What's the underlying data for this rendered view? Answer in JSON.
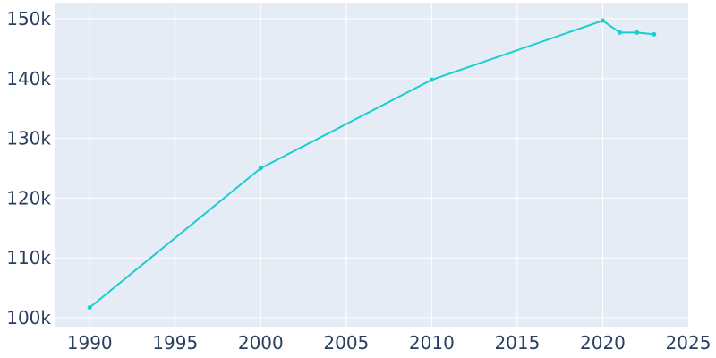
{
  "chart_data": {
    "type": "line",
    "title": "",
    "xlabel": "",
    "ylabel": "",
    "xlim": [
      1988,
      2025
    ],
    "ylim": [
      98500,
      152700
    ],
    "x_ticks": [
      1990,
      1995,
      2000,
      2005,
      2010,
      2015,
      2020,
      2025
    ],
    "x_tick_labels": [
      "1990",
      "1995",
      "2000",
      "2005",
      "2010",
      "2015",
      "2020",
      "2025"
    ],
    "y_ticks": [
      100000,
      110000,
      120000,
      130000,
      140000,
      150000
    ],
    "y_tick_labels": [
      "100k",
      "110k",
      "120k",
      "130k",
      "140k",
      "150k"
    ],
    "grid": true,
    "legend": "none",
    "series": [
      {
        "color": "#17cfcf",
        "points": [
          {
            "x": 1990,
            "y": 101700
          },
          {
            "x": 2000,
            "y": 125000
          },
          {
            "x": 2010,
            "y": 139800
          },
          {
            "x": 2020,
            "y": 149700
          },
          {
            "x": 2021,
            "y": 147700
          },
          {
            "x": 2022,
            "y": 147700
          },
          {
            "x": 2023,
            "y": 147400
          }
        ]
      }
    ]
  }
}
